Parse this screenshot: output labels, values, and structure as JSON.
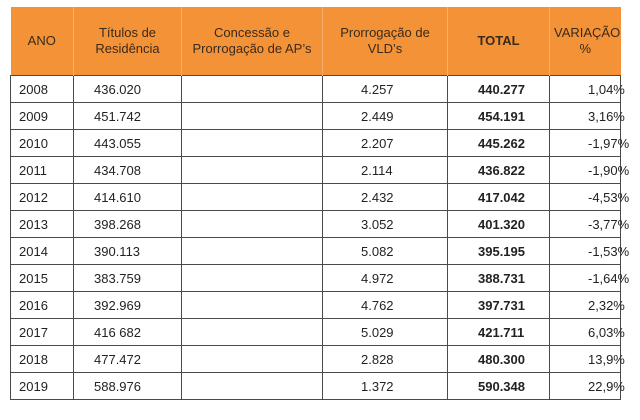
{
  "table": {
    "headers": [
      {
        "line1": "ANO",
        "line2": ""
      },
      {
        "line1": "Títulos de",
        "line2": "Residência"
      },
      {
        "line1": "Concessão e",
        "line2": "Prorrogação de AP’s"
      },
      {
        "line1": "Prorrogação de",
        "line2": "VLD’s"
      },
      {
        "line1": "TOTAL",
        "line2": ""
      },
      {
        "line1": "VARIAÇÃO",
        "line2": "%"
      }
    ],
    "rows": [
      {
        "ano": "2008",
        "titulos": "436.020",
        "concessao": "",
        "vld": "4.257",
        "total": "440.277",
        "variacao": "1,04%"
      },
      {
        "ano": "2009",
        "titulos": "451.742",
        "concessao": "",
        "vld": "2.449",
        "total": "454.191",
        "variacao": "3,16%"
      },
      {
        "ano": "2010",
        "titulos": "443.055",
        "concessao": "",
        "vld": "2.207",
        "total": "445.262",
        "variacao": "-1,97%"
      },
      {
        "ano": "2011",
        "titulos": "434.708",
        "concessao": "",
        "vld": "2.114",
        "total": "436.822",
        "variacao": "-1,90%"
      },
      {
        "ano": "2012",
        "titulos": "414.610",
        "concessao": "",
        "vld": "2.432",
        "total": "417.042",
        "variacao": "-4,53%"
      },
      {
        "ano": "2013",
        "titulos": "398.268",
        "concessao": "",
        "vld": "3.052",
        "total": "401.320",
        "variacao": "-3,77%"
      },
      {
        "ano": "2014",
        "titulos": "390.113",
        "concessao": "",
        "vld": "5.082",
        "total": "395.195",
        "variacao": "-1,53%"
      },
      {
        "ano": "2015",
        "titulos": "383.759",
        "concessao": "",
        "vld": "4.972",
        "total": "388.731",
        "variacao": "-1,64%"
      },
      {
        "ano": "2016",
        "titulos": "392.969",
        "concessao": "",
        "vld": "4.762",
        "total": "397.731",
        "variacao": "2,32%"
      },
      {
        "ano": "2017",
        "titulos": "416 682",
        "concessao": "",
        "vld": "5.029",
        "total": "421.711",
        "variacao": "6,03%"
      },
      {
        "ano": "2018",
        "titulos": "477.472",
        "concessao": "",
        "vld": "2.828",
        "total": "480.300",
        "variacao": "13,9%"
      },
      {
        "ano": "2019",
        "titulos": "588.976",
        "concessao": "",
        "vld": "1.372",
        "total": "590.348",
        "variacao": "22,9%"
      }
    ]
  },
  "colors": {
    "header_bg": "#f39237",
    "border": "#4a4a4a"
  }
}
